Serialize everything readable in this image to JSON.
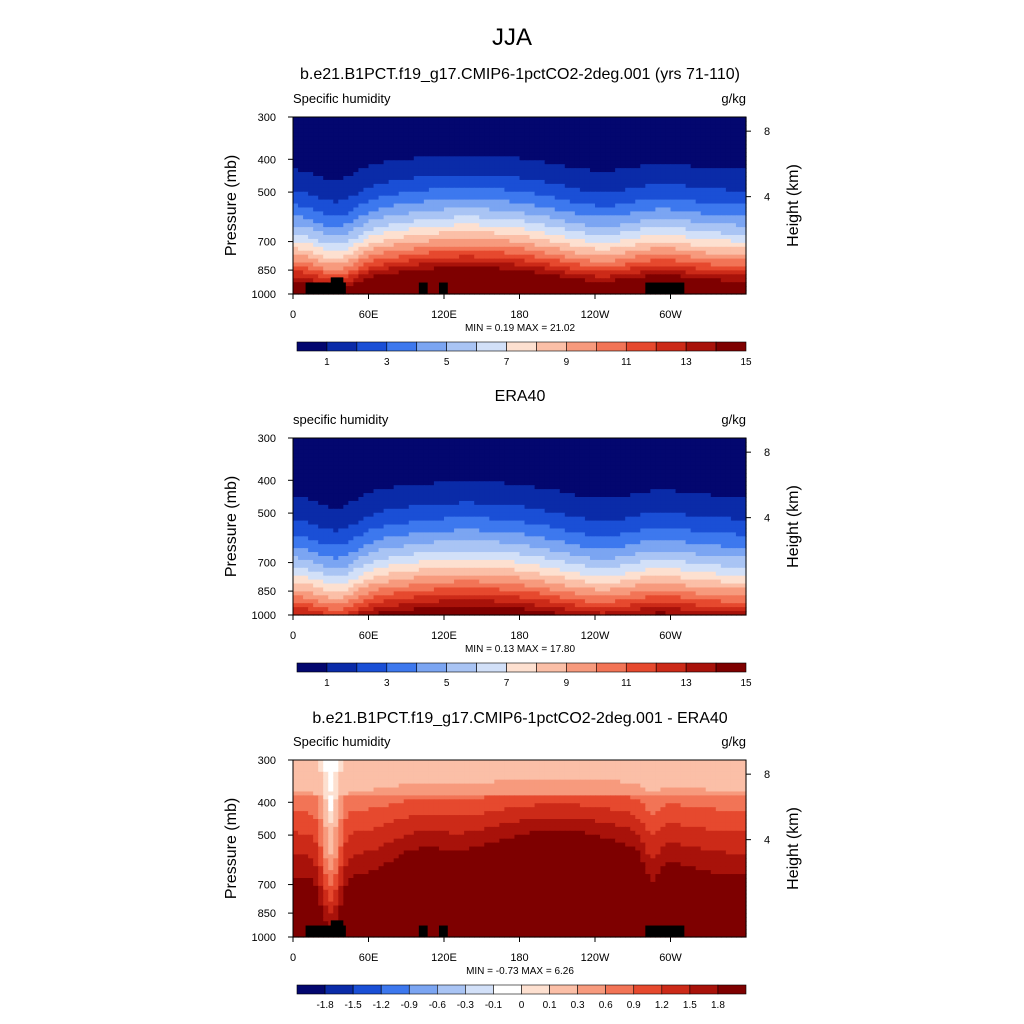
{
  "page_title": "JJA",
  "chart_data": [
    {
      "type": "heatmap",
      "title": "b.e21.B1PCT.f19_g17.CMIP6-1pctCO2-2deg.001 (yrs 71-110)",
      "left_label": "Specific humidity",
      "units": "g/kg",
      "ylabel": "Pressure (mb)",
      "y2label": "Height (km)",
      "pressure_ticks": [
        "300",
        "400",
        "500",
        "700",
        "850",
        "1000"
      ],
      "height_ticks": [
        "8",
        "4"
      ],
      "lon_ticks": [
        "0",
        "60E",
        "120E",
        "180",
        "120W",
        "60W"
      ],
      "stats": "MIN =   0.19  MAX =  21.02",
      "min": 0.19,
      "max": 21.02,
      "colorbar_labels": [
        "1",
        "3",
        "5",
        "7",
        "9",
        "11",
        "13",
        "15"
      ],
      "colors": [
        "#03076f",
        "#0a2ba8",
        "#1a4fd6",
        "#3d78ee",
        "#7ba5f2",
        "#a9c4f4",
        "#d2e0f8",
        "#fde0d0",
        "#fbbfa7",
        "#f79a7d",
        "#f27456",
        "#e6492e",
        "#cc2a18",
        "#a8120a",
        "#7e0000"
      ]
    },
    {
      "type": "heatmap",
      "title": "ERA40",
      "left_label": "specific humidity",
      "units": "g/kg",
      "ylabel": "Pressure (mb)",
      "y2label": "Height (km)",
      "pressure_ticks": [
        "300",
        "400",
        "500",
        "700",
        "850",
        "1000"
      ],
      "height_ticks": [
        "8",
        "4"
      ],
      "lon_ticks": [
        "0",
        "60E",
        "120E",
        "180",
        "120W",
        "60W"
      ],
      "stats": "MIN =   0.13  MAX =  17.80",
      "min": 0.13,
      "max": 17.8,
      "colorbar_labels": [
        "1",
        "3",
        "5",
        "7",
        "9",
        "11",
        "13",
        "15"
      ],
      "colors": [
        "#03076f",
        "#0a2ba8",
        "#1a4fd6",
        "#3d78ee",
        "#7ba5f2",
        "#a9c4f4",
        "#d2e0f8",
        "#fde0d0",
        "#fbbfa7",
        "#f79a7d",
        "#f27456",
        "#e6492e",
        "#cc2a18",
        "#a8120a",
        "#7e0000"
      ]
    },
    {
      "type": "heatmap",
      "title": "b.e21.B1PCT.f19_g17.CMIP6-1pctCO2-2deg.001 - ERA40",
      "left_label": "Specific humidity",
      "units": "g/kg",
      "ylabel": "Pressure (mb)",
      "y2label": "Height (km)",
      "pressure_ticks": [
        "300",
        "400",
        "500",
        "700",
        "850",
        "1000"
      ],
      "height_ticks": [
        "8",
        "4"
      ],
      "lon_ticks": [
        "0",
        "60E",
        "120E",
        "180",
        "120W",
        "60W"
      ],
      "stats": "MIN =  -0.73  MAX =   6.26",
      "min": -0.73,
      "max": 6.26,
      "colorbar_labels": [
        "-1.8",
        "-1.5",
        "-1.2",
        "-0.9",
        "-0.6",
        "-0.3",
        "-0.1",
        "0",
        "0.1",
        "0.3",
        "0.6",
        "0.9",
        "1.2",
        "1.5",
        "1.8"
      ],
      "colors": [
        "#03076f",
        "#0a2ba8",
        "#1a4fd6",
        "#3d78ee",
        "#7ba5f2",
        "#a9c4f4",
        "#d2e0f8",
        "#ffffff",
        "#fde0d0",
        "#fbbfa7",
        "#f79a7d",
        "#f27456",
        "#e6492e",
        "#cc2a18",
        "#a8120a",
        "#7e0000"
      ]
    }
  ]
}
